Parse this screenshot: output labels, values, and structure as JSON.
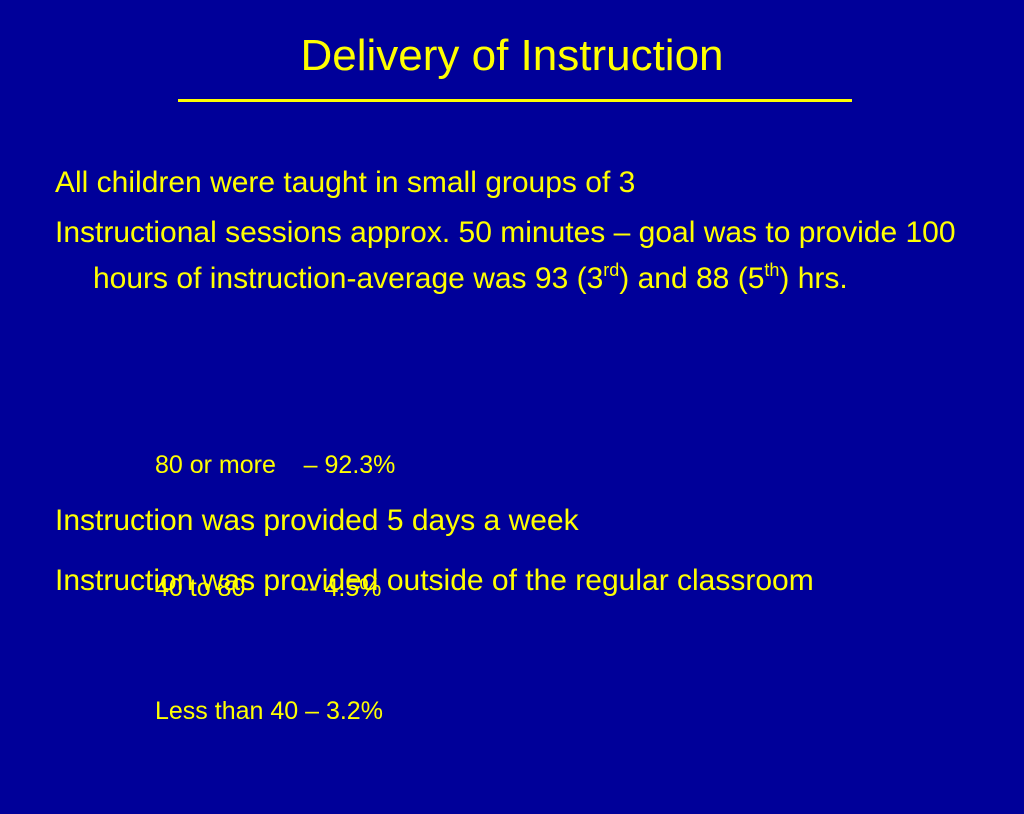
{
  "title": "Delivery of Instruction",
  "bullets": [
    {
      "text": "All children were taught in small groups of 3"
    },
    {
      "parts": [
        "Instructional sessions approx. 50 minutes – goal was to provide 100 hours of instruction-average was 93 (3",
        "rd",
        ") and 88 (5",
        "th",
        ") hrs."
      ]
    },
    {
      "sub_items": [
        "80 or more    – 92.3%",
        "40 to 80        -- 4.5%",
        "Less than 40 – 3.2%"
      ]
    },
    {
      "text": "Instruction was provided 5 days a week"
    },
    {
      "text": "Instruction was provided outside of the regular classroom"
    }
  ]
}
